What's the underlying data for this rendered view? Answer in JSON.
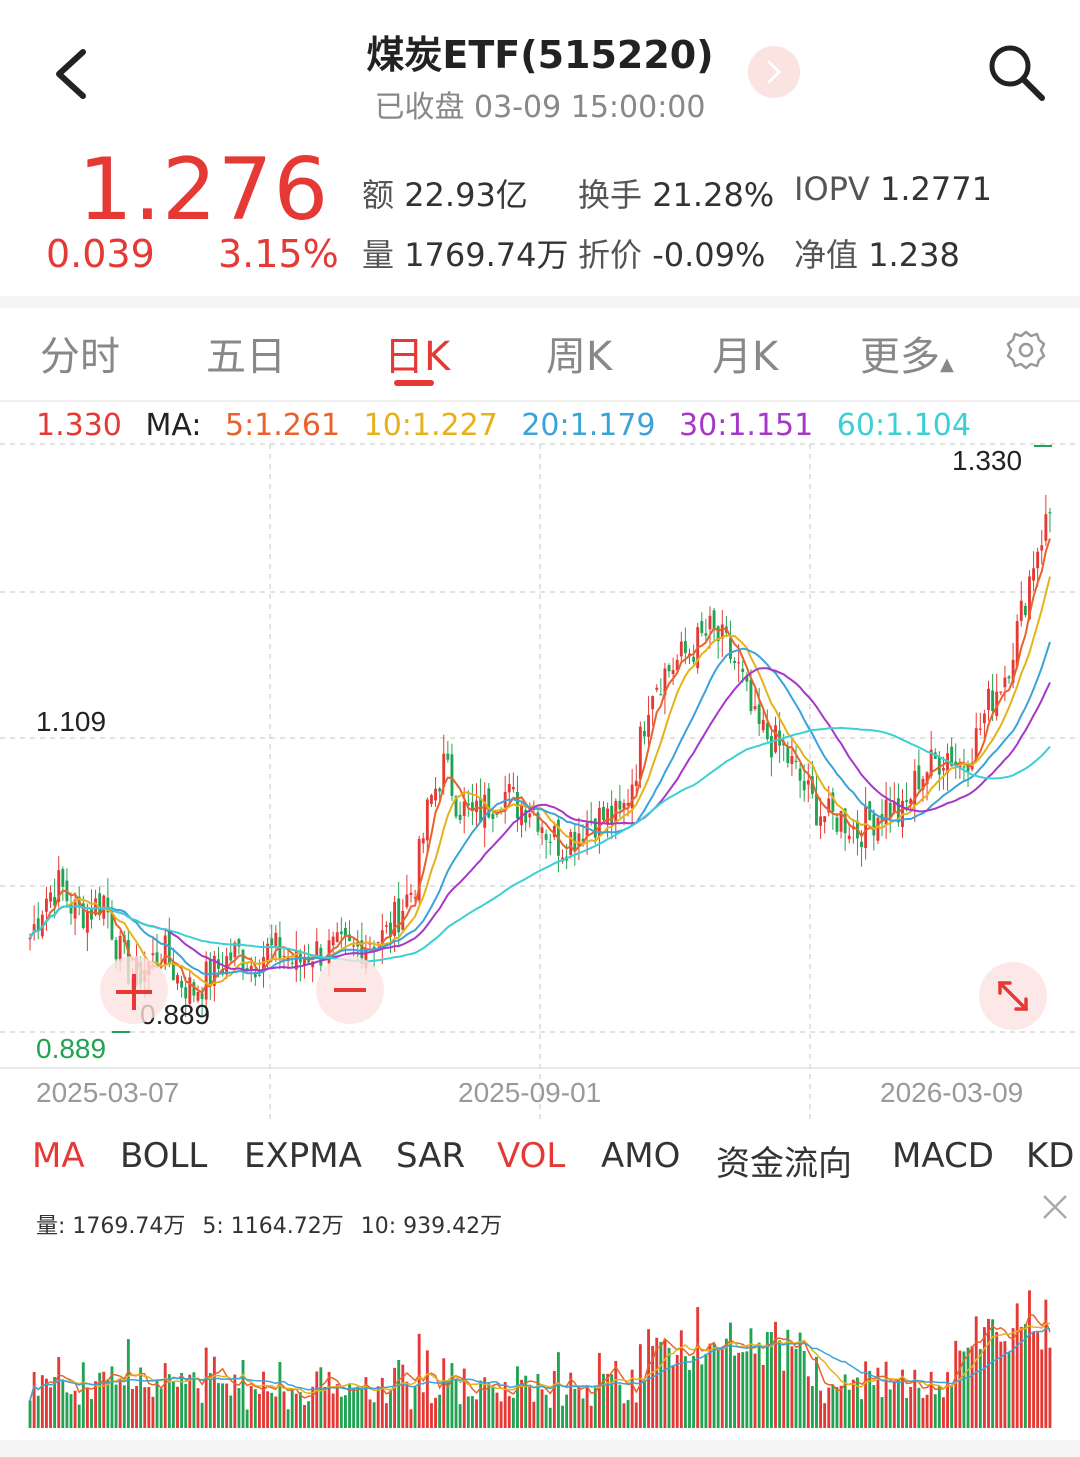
{
  "header": {
    "title": "煤炭ETF(515220)",
    "subtitle": "已收盘 03-09 15:00:00"
  },
  "quote": {
    "price": "1.276",
    "change": "0.039",
    "change_pct": "3.15%",
    "stats": [
      {
        "key": "额",
        "value": "22.93亿"
      },
      {
        "key": "换手",
        "value": "21.28%"
      },
      {
        "key": "IOPV",
        "value": "1.2771"
      },
      {
        "key": "量",
        "value": "1769.74万"
      },
      {
        "key": "折价",
        "value": "-0.09%"
      },
      {
        "key": "净值",
        "value": "1.238"
      }
    ]
  },
  "tabs": [
    {
      "label": "分时"
    },
    {
      "label": "五日"
    },
    {
      "label": "日K"
    },
    {
      "label": "周K"
    },
    {
      "label": "月K"
    },
    {
      "label": "更多"
    }
  ],
  "ma_legend": {
    "top": "1.330",
    "ma_label": "MA:",
    "items": [
      {
        "label": "5:1.261",
        "color": "#e8632b"
      },
      {
        "label": "10:1.227",
        "color": "#e6b21a"
      },
      {
        "label": "20:1.179",
        "color": "#3aa3d9"
      },
      {
        "label": "30:1.151",
        "color": "#a637c9"
      },
      {
        "label": "60:1.104",
        "color": "#3ccfd4"
      }
    ]
  },
  "colors": {
    "up": "#e53935",
    "down": "#21a353",
    "accent": "#e53935"
  },
  "chart_data": {
    "type": "candlestick",
    "y_axis_labels": [
      "1.109",
      "0.889"
    ],
    "high_label": "1.330",
    "low_label": "0.889",
    "x_axis_labels": [
      "2025-03-07",
      "2025-09-01",
      "2026-03-09"
    ],
    "ylim": [
      0.889,
      1.33
    ],
    "ma_series": [
      {
        "name": "5",
        "last": 1.261
      },
      {
        "name": "10",
        "last": 1.227
      },
      {
        "name": "20",
        "last": 1.179
      },
      {
        "name": "30",
        "last": 1.151
      },
      {
        "name": "60",
        "last": 1.104
      }
    ],
    "close_path": [
      0.96,
      0.99,
      1.0,
      0.98,
      0.98,
      0.99,
      0.95,
      0.93,
      0.94,
      0.95,
      0.93,
      0.92,
      0.93,
      0.94,
      0.95,
      0.94,
      0.95,
      0.95,
      0.94,
      0.95,
      0.95,
      0.95,
      0.95,
      0.96,
      0.96,
      0.98,
      1.0,
      1.06,
      1.09,
      1.06,
      1.05,
      1.06,
      1.07,
      1.06,
      1.06,
      1.04,
      1.03,
      1.04,
      1.05,
      1.05,
      1.05,
      1.09,
      1.15,
      1.16,
      1.17,
      1.18,
      1.19,
      1.18,
      1.16,
      1.12,
      1.11,
      1.1,
      1.08,
      1.06,
      1.05,
      1.05,
      1.04,
      1.05,
      1.06,
      1.05,
      1.08,
      1.09,
      1.1,
      1.09,
      1.11,
      1.14,
      1.16,
      1.2,
      1.25,
      1.28
    ],
    "volume": {
      "label": "量: 1769.74万",
      "ma5": "5: 1164.72万",
      "ma10": "10: 939.42万"
    }
  },
  "indicator_tabs": [
    {
      "label": "MA"
    },
    {
      "label": "BOLL"
    },
    {
      "label": "EXPMA"
    },
    {
      "label": "SAR"
    },
    {
      "label": "VOL"
    },
    {
      "label": "AMO"
    },
    {
      "label": "资金流向"
    },
    {
      "label": "MACD"
    },
    {
      "label": "KD"
    }
  ]
}
